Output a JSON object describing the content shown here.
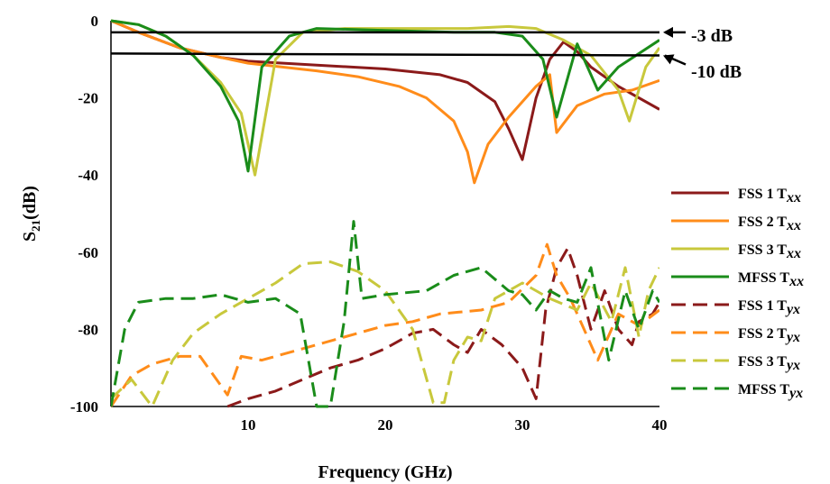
{
  "chart_data": {
    "type": "line",
    "xlabel": "Frequency (GHz)",
    "ylabel_main": "S",
    "ylabel_sub": "21",
    "ylabel_tail": "(dB)",
    "xlim": [
      0,
      40
    ],
    "ylim": [
      -100,
      0
    ],
    "xticks": [
      10,
      20,
      30,
      40
    ],
    "yticks": [
      0,
      -20,
      -40,
      -60,
      -80,
      -100
    ],
    "reference_lines": [
      {
        "label": "-3 dB",
        "y_start": -3,
        "y_end": -3
      },
      {
        "label": "-10 dB",
        "y_start": -8.5,
        "y_end": -9
      }
    ],
    "legend": {
      "placement": "right"
    },
    "series": [
      {
        "name": "FSS 1 T",
        "sub": "xx",
        "color": "#8B1A1A",
        "dash": false,
        "points": [
          [
            0,
            0
          ],
          [
            2,
            -3
          ],
          [
            5,
            -7
          ],
          [
            8,
            -9.5
          ],
          [
            10,
            -10.5
          ],
          [
            15,
            -11.5
          ],
          [
            20,
            -12.5
          ],
          [
            24,
            -14
          ],
          [
            26,
            -16
          ],
          [
            28,
            -21
          ],
          [
            29,
            -28
          ],
          [
            30,
            -36
          ],
          [
            31,
            -20
          ],
          [
            32,
            -10
          ],
          [
            33,
            -5.5
          ],
          [
            34,
            -8
          ],
          [
            35,
            -12
          ],
          [
            37,
            -17
          ],
          [
            40,
            -23
          ]
        ]
      },
      {
        "name": "FSS 2 T",
        "sub": "xx",
        "color": "#FF8C1A",
        "dash": false,
        "points": [
          [
            0,
            0
          ],
          [
            2,
            -3
          ],
          [
            5,
            -7
          ],
          [
            8,
            -9.5
          ],
          [
            10,
            -11
          ],
          [
            15,
            -13
          ],
          [
            18,
            -14.5
          ],
          [
            21,
            -17
          ],
          [
            23,
            -20
          ],
          [
            25,
            -26
          ],
          [
            26,
            -34
          ],
          [
            26.5,
            -42
          ],
          [
            27.5,
            -32
          ],
          [
            29,
            -25
          ],
          [
            31,
            -17
          ],
          [
            32,
            -14
          ],
          [
            32.5,
            -29
          ],
          [
            34,
            -22
          ],
          [
            36,
            -19
          ],
          [
            38,
            -18
          ],
          [
            40,
            -15.5
          ]
        ]
      },
      {
        "name": "FSS 3 T",
        "sub": "xx",
        "color": "#C8C83C",
        "dash": false,
        "points": [
          [
            0,
            0
          ],
          [
            2,
            -1
          ],
          [
            4,
            -4
          ],
          [
            6,
            -9
          ],
          [
            8,
            -16
          ],
          [
            9.5,
            -24
          ],
          [
            10.5,
            -40
          ],
          [
            12,
            -10
          ],
          [
            14,
            -3
          ],
          [
            17,
            -2
          ],
          [
            22,
            -2
          ],
          [
            26,
            -2
          ],
          [
            29,
            -1.5
          ],
          [
            31,
            -2
          ],
          [
            33,
            -5
          ],
          [
            35,
            -9
          ],
          [
            37,
            -18
          ],
          [
            37.8,
            -26
          ],
          [
            39,
            -12
          ],
          [
            40,
            -7
          ]
        ]
      },
      {
        "name": "MFSS T",
        "sub": "xx",
        "color": "#1A8C1A",
        "dash": false,
        "points": [
          [
            0,
            0
          ],
          [
            2,
            -1
          ],
          [
            4,
            -4
          ],
          [
            6,
            -9
          ],
          [
            8,
            -17
          ],
          [
            9.3,
            -26
          ],
          [
            10,
            -39
          ],
          [
            11,
            -12
          ],
          [
            13,
            -4
          ],
          [
            15,
            -2
          ],
          [
            20,
            -2.5
          ],
          [
            25,
            -3
          ],
          [
            28,
            -3
          ],
          [
            30,
            -4
          ],
          [
            31.5,
            -10
          ],
          [
            32.5,
            -25
          ],
          [
            34,
            -6
          ],
          [
            35.5,
            -18
          ],
          [
            37,
            -12
          ],
          [
            40,
            -5
          ]
        ]
      },
      {
        "name": "FSS 1 T",
        "sub": "yx",
        "color": "#8B1A1A",
        "dash": true,
        "points": [
          [
            8.5,
            -100
          ],
          [
            10,
            -98
          ],
          [
            12,
            -96
          ],
          [
            14,
            -93
          ],
          [
            16,
            -90
          ],
          [
            18,
            -88
          ],
          [
            20,
            -85
          ],
          [
            22,
            -81
          ],
          [
            23.5,
            -80
          ],
          [
            25,
            -84
          ],
          [
            26,
            -86
          ],
          [
            27,
            -80
          ],
          [
            28.5,
            -84
          ],
          [
            30,
            -90
          ],
          [
            31,
            -98
          ],
          [
            31.7,
            -75
          ],
          [
            32.5,
            -64
          ],
          [
            33.3,
            -59
          ],
          [
            34,
            -66
          ],
          [
            35,
            -80
          ],
          [
            36,
            -70
          ],
          [
            37,
            -80
          ],
          [
            38,
            -84
          ],
          [
            38.5,
            -78
          ],
          [
            39.5,
            -76
          ],
          [
            40,
            -73
          ]
        ]
      },
      {
        "name": "FSS 2 T",
        "sub": "yx",
        "color": "#FF8C1A",
        "dash": true,
        "points": [
          [
            0,
            -100
          ],
          [
            1.5,
            -92
          ],
          [
            3,
            -89
          ],
          [
            5,
            -87
          ],
          [
            6.5,
            -87
          ],
          [
            8.5,
            -97
          ],
          [
            9.5,
            -87
          ],
          [
            11,
            -88
          ],
          [
            14,
            -85
          ],
          [
            17,
            -82
          ],
          [
            20,
            -79
          ],
          [
            22,
            -78
          ],
          [
            24,
            -76
          ],
          [
            27,
            -75
          ],
          [
            29,
            -73
          ],
          [
            31,
            -66
          ],
          [
            31.8,
            -58
          ],
          [
            32.5,
            -66
          ],
          [
            33.5,
            -72
          ],
          [
            34.5,
            -80
          ],
          [
            35.5,
            -88
          ],
          [
            37,
            -76
          ],
          [
            38.5,
            -79
          ],
          [
            40,
            -75
          ]
        ]
      },
      {
        "name": "FSS 3 T",
        "sub": "yx",
        "color": "#C8C83C",
        "dash": true,
        "points": [
          [
            0,
            -98
          ],
          [
            1.5,
            -93
          ],
          [
            3,
            -100
          ],
          [
            4.5,
            -88
          ],
          [
            6,
            -81
          ],
          [
            8,
            -76
          ],
          [
            10,
            -72
          ],
          [
            12,
            -68
          ],
          [
            14,
            -63
          ],
          [
            16,
            -62.5
          ],
          [
            18,
            -65
          ],
          [
            20,
            -70
          ],
          [
            22,
            -80
          ],
          [
            23.5,
            -99
          ],
          [
            24.3,
            -99
          ],
          [
            25,
            -88
          ],
          [
            26,
            -82
          ],
          [
            27,
            -83
          ],
          [
            28,
            -72
          ],
          [
            30,
            -68
          ],
          [
            32,
            -72
          ],
          [
            34,
            -75
          ],
          [
            35,
            -68
          ],
          [
            36.5,
            -78
          ],
          [
            37.5,
            -64
          ],
          [
            38.5,
            -82
          ],
          [
            39.2,
            -70
          ],
          [
            40,
            -64
          ]
        ]
      },
      {
        "name": "MFSS T",
        "sub": "yx",
        "color": "#1A8C1A",
        "dash": true,
        "points": [
          [
            0,
            -100
          ],
          [
            1,
            -80
          ],
          [
            2,
            -73
          ],
          [
            4,
            -72
          ],
          [
            6,
            -72
          ],
          [
            8,
            -71
          ],
          [
            10,
            -73
          ],
          [
            12,
            -72
          ],
          [
            13.8,
            -76
          ],
          [
            15,
            -100
          ],
          [
            16,
            -100
          ],
          [
            17,
            -78
          ],
          [
            17.7,
            -52
          ],
          [
            18.3,
            -72
          ],
          [
            20,
            -71
          ],
          [
            23,
            -70
          ],
          [
            25,
            -66
          ],
          [
            27,
            -64
          ],
          [
            29,
            -70
          ],
          [
            30,
            -71
          ],
          [
            31,
            -75
          ],
          [
            32,
            -70
          ],
          [
            33,
            -72
          ],
          [
            34,
            -73
          ],
          [
            35,
            -64
          ],
          [
            36.3,
            -88
          ],
          [
            37.5,
            -70
          ],
          [
            38.5,
            -80
          ],
          [
            39.5,
            -70
          ],
          [
            40,
            -73
          ]
        ]
      }
    ]
  }
}
